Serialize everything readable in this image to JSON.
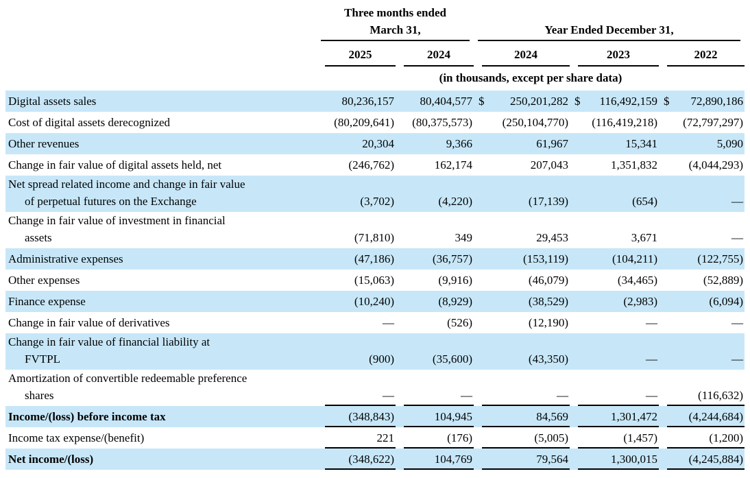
{
  "document": {
    "header": {
      "groups": [
        {
          "line1": "Three months ended",
          "line2": "March 31,",
          "span": 2
        },
        {
          "line1": "Year Ended December 31,",
          "line2": "",
          "span": 3
        }
      ],
      "years": [
        "2025",
        "2024",
        "2024",
        "2023",
        "2022"
      ],
      "units_note": "(in thousands, except per share data)"
    },
    "colors": {
      "row_highlight": "#c7e7f8",
      "text": "#000000",
      "background": "#ffffff",
      "rule": "#000000"
    },
    "rows": [
      {
        "label": "Digital assets sales",
        "label2": "",
        "shaded": true,
        "bold": false,
        "rule_below": false,
        "dollars": [
          "",
          "",
          "$",
          "$",
          "$"
        ],
        "values": [
          "80,236,157",
          "80,404,577",
          "250,201,282",
          "116,492,159",
          "72,890,186"
        ]
      },
      {
        "label": "Cost of digital assets derecognized",
        "label2": "",
        "shaded": false,
        "bold": false,
        "rule_below": false,
        "values": [
          "(80,209,641)",
          "(80,375,573)",
          "(250,104,770)",
          "(116,419,218)",
          "(72,797,297)"
        ]
      },
      {
        "label": "Other revenues",
        "label2": "",
        "shaded": true,
        "bold": false,
        "rule_below": false,
        "values": [
          "20,304",
          "9,366",
          "61,967",
          "15,341",
          "5,090"
        ]
      },
      {
        "label": "Change in fair value of digital assets held, net",
        "label2": "",
        "shaded": false,
        "bold": false,
        "rule_below": false,
        "values": [
          "(246,762)",
          "162,174",
          "207,043",
          "1,351,832",
          "(4,044,293)"
        ]
      },
      {
        "label": "Net spread related income and change in fair value",
        "label2": "of perpetual futures on the Exchange",
        "shaded": true,
        "bold": false,
        "rule_below": false,
        "values": [
          "(3,702)",
          "(4,220)",
          "(17,139)",
          "(654)",
          "—"
        ]
      },
      {
        "label": "Change in fair value of investment in financial",
        "label2": "assets",
        "shaded": false,
        "bold": false,
        "rule_below": false,
        "values": [
          "(71,810)",
          "349",
          "29,453",
          "3,671",
          "—"
        ]
      },
      {
        "label": "Administrative expenses",
        "label2": "",
        "shaded": true,
        "bold": false,
        "rule_below": false,
        "values": [
          "(47,186)",
          "(36,757)",
          "(153,119)",
          "(104,211)",
          "(122,755)"
        ]
      },
      {
        "label": "Other expenses",
        "label2": "",
        "shaded": false,
        "bold": false,
        "rule_below": false,
        "values": [
          "(15,063)",
          "(9,916)",
          "(46,079)",
          "(34,465)",
          "(52,889)"
        ]
      },
      {
        "label": "Finance expense",
        "label2": "",
        "shaded": true,
        "bold": false,
        "rule_below": false,
        "values": [
          "(10,240)",
          "(8,929)",
          "(38,529)",
          "(2,983)",
          "(6,094)"
        ]
      },
      {
        "label": "Change in fair value of derivatives",
        "label2": "",
        "shaded": false,
        "bold": false,
        "rule_below": false,
        "values": [
          "—",
          "(526)",
          "(12,190)",
          "—",
          "—"
        ]
      },
      {
        "label": "Change in fair value of financial liability at",
        "label2": "FVTPL",
        "shaded": true,
        "bold": false,
        "rule_below": false,
        "values": [
          "(900)",
          "(35,600)",
          "(43,350)",
          "—",
          "—"
        ]
      },
      {
        "label": "Amortization of convertible redeemable preference",
        "label2": "shares",
        "shaded": false,
        "bold": false,
        "rule_below": true,
        "values": [
          "—",
          "—",
          "—",
          "—",
          "(116,632)"
        ]
      },
      {
        "label": "Income/(loss) before income tax",
        "label2": "",
        "shaded": true,
        "bold": true,
        "rule_below": true,
        "values": [
          "(348,843)",
          "104,945",
          "84,569",
          "1,301,472",
          "(4,244,684)"
        ]
      },
      {
        "label": "Income tax expense/(benefit)",
        "label2": "",
        "shaded": false,
        "bold": false,
        "rule_below": true,
        "values": [
          "221",
          "(176)",
          "(5,005)",
          "(1,457)",
          "(1,200)"
        ]
      },
      {
        "label": "Net income/(loss)",
        "label2": "",
        "shaded": true,
        "bold": true,
        "rule_below": true,
        "values": [
          "(348,622)",
          "104,769",
          "79,564",
          "1,300,015",
          "(4,245,884)"
        ]
      }
    ]
  }
}
